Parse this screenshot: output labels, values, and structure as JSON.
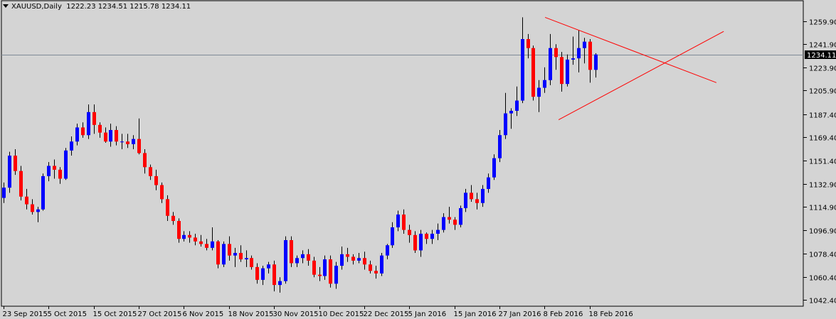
{
  "header": {
    "symbol_label": "XAUUSD,Daily",
    "ohlc_text": "1222.23 1234.51 1215.78 1234.11"
  },
  "price_marker": "1234.11",
  "colors": {
    "background": "#d4d4d4",
    "bull": "#0000ff",
    "bear": "#ff0000",
    "wick": "#000000",
    "trendline": "#ff0000",
    "price_line": "#7f8a96",
    "marker_bg": "#000000",
    "marker_text": "#ffffff"
  },
  "chart_data": {
    "type": "candlestick",
    "title": "XAUUSD,Daily",
    "ylim": [
      1042.4,
      1270.0
    ],
    "y_ticks": [
      1259.9,
      1241.9,
      1223.9,
      1205.9,
      1187.4,
      1169.4,
      1151.4,
      1132.9,
      1114.9,
      1096.9,
      1078.4,
      1060.4,
      1042.4
    ],
    "y_tick_labels": [
      "1259.90",
      "1241.90",
      "1223.90",
      "1205.90",
      "1187.40",
      "1169.40",
      "1151.40",
      "1132.90",
      "1114.90",
      "1096.90",
      "1078.40",
      "1060.40",
      "1042.40"
    ],
    "x_labels": [
      {
        "text": "23 Sep 2015",
        "index": 0
      },
      {
        "text": "5 Oct 2015",
        "index": 8
      },
      {
        "text": "15 Oct 2015",
        "index": 16
      },
      {
        "text": "27 Oct 2015",
        "index": 24
      },
      {
        "text": "6 Nov 2015",
        "index": 32
      },
      {
        "text": "18 Nov 2015",
        "index": 40
      },
      {
        "text": "30 Nov 2015",
        "index": 48
      },
      {
        "text": "10 Dec 2015",
        "index": 56
      },
      {
        "text": "22 Dec 2015",
        "index": 64
      },
      {
        "text": "5 Jan 2016",
        "index": 72
      },
      {
        "text": "15 Jan 2016",
        "index": 80
      },
      {
        "text": "27 Jan 2016",
        "index": 88
      },
      {
        "text": "8 Feb 2016",
        "index": 96
      },
      {
        "text": "18 Feb 2016",
        "index": 104
      }
    ],
    "candles": [
      [
        1122,
        1134,
        1118,
        1130
      ],
      [
        1130,
        1158,
        1126,
        1155
      ],
      [
        1155,
        1160,
        1140,
        1143
      ],
      [
        1143,
        1147,
        1120,
        1123
      ],
      [
        1123,
        1129,
        1113,
        1117
      ],
      [
        1117,
        1121,
        1109,
        1111
      ],
      [
        1111,
        1115,
        1103,
        1113
      ],
      [
        1113,
        1141,
        1112,
        1139
      ],
      [
        1139,
        1150,
        1135,
        1147
      ],
      [
        1147,
        1152,
        1137,
        1144
      ],
      [
        1144,
        1146,
        1133,
        1137
      ],
      [
        1137,
        1161,
        1136,
        1159
      ],
      [
        1159,
        1170,
        1155,
        1166
      ],
      [
        1166,
        1180,
        1163,
        1177
      ],
      [
        1177,
        1181,
        1169,
        1171
      ],
      [
        1171,
        1195,
        1168,
        1189
      ],
      [
        1189,
        1195,
        1172,
        1179
      ],
      [
        1179,
        1181,
        1169,
        1173
      ],
      [
        1173,
        1177,
        1165,
        1166
      ],
      [
        1166,
        1180,
        1162,
        1175
      ],
      [
        1175,
        1178,
        1163,
        1166
      ],
      [
        1166,
        1172,
        1160,
        1166
      ],
      [
        1166,
        1172,
        1161,
        1164
      ],
      [
        1164,
        1171,
        1160,
        1168
      ],
      [
        1168,
        1184,
        1156,
        1157
      ],
      [
        1157,
        1160,
        1141,
        1146
      ],
      [
        1146,
        1148,
        1136,
        1139
      ],
      [
        1139,
        1144,
        1128,
        1132
      ],
      [
        1132,
        1134,
        1118,
        1121
      ],
      [
        1121,
        1124,
        1104,
        1108
      ],
      [
        1108,
        1111,
        1101,
        1104
      ],
      [
        1104,
        1106,
        1087,
        1090
      ],
      [
        1090,
        1096,
        1088,
        1093
      ],
      [
        1093,
        1096,
        1087,
        1091
      ],
      [
        1091,
        1094,
        1085,
        1088
      ],
      [
        1088,
        1093,
        1084,
        1086
      ],
      [
        1086,
        1090,
        1081,
        1083
      ],
      [
        1083,
        1099,
        1081,
        1088
      ],
      [
        1088,
        1089,
        1067,
        1070
      ],
      [
        1070,
        1088,
        1068,
        1086
      ],
      [
        1086,
        1092,
        1073,
        1077
      ],
      [
        1077,
        1083,
        1068,
        1079
      ],
      [
        1079,
        1085,
        1072,
        1074
      ],
      [
        1074,
        1081,
        1068,
        1075
      ],
      [
        1075,
        1077,
        1066,
        1068
      ],
      [
        1068,
        1071,
        1055,
        1058
      ],
      [
        1058,
        1069,
        1054,
        1067
      ],
      [
        1067,
        1072,
        1063,
        1070
      ],
      [
        1070,
        1073,
        1049,
        1054
      ],
      [
        1054,
        1060,
        1048,
        1057
      ],
      [
        1057,
        1092,
        1055,
        1089
      ],
      [
        1089,
        1092,
        1068,
        1071
      ],
      [
        1071,
        1077,
        1068,
        1075
      ],
      [
        1075,
        1081,
        1071,
        1078
      ],
      [
        1078,
        1082,
        1069,
        1073
      ],
      [
        1073,
        1076,
        1060,
        1062
      ],
      [
        1062,
        1068,
        1057,
        1061
      ],
      [
        1061,
        1077,
        1058,
        1074
      ],
      [
        1074,
        1077,
        1052,
        1055
      ],
      [
        1055,
        1072,
        1051,
        1069
      ],
      [
        1069,
        1084,
        1066,
        1078
      ],
      [
        1078,
        1083,
        1072,
        1076
      ],
      [
        1076,
        1078,
        1070,
        1073
      ],
      [
        1073,
        1079,
        1071,
        1075
      ],
      [
        1075,
        1080,
        1066,
        1070
      ],
      [
        1070,
        1073,
        1063,
        1065
      ],
      [
        1065,
        1069,
        1059,
        1063
      ],
      [
        1063,
        1079,
        1061,
        1077
      ],
      [
        1077,
        1086,
        1074,
        1085
      ],
      [
        1085,
        1103,
        1083,
        1099
      ],
      [
        1099,
        1112,
        1096,
        1109
      ],
      [
        1109,
        1113,
        1094,
        1097
      ],
      [
        1097,
        1101,
        1087,
        1093
      ],
      [
        1093,
        1096,
        1079,
        1081
      ],
      [
        1081,
        1097,
        1076,
        1094
      ],
      [
        1094,
        1095,
        1086,
        1090
      ],
      [
        1090,
        1097,
        1086,
        1094
      ],
      [
        1094,
        1102,
        1089,
        1097
      ],
      [
        1097,
        1110,
        1095,
        1107
      ],
      [
        1107,
        1115,
        1102,
        1105
      ],
      [
        1105,
        1107,
        1097,
        1101
      ],
      [
        1101,
        1116,
        1099,
        1114
      ],
      [
        1114,
        1129,
        1111,
        1126
      ],
      [
        1126,
        1132,
        1119,
        1121
      ],
      [
        1121,
        1126,
        1113,
        1118
      ],
      [
        1118,
        1132,
        1115,
        1129
      ],
      [
        1129,
        1141,
        1126,
        1138
      ],
      [
        1138,
        1156,
        1136,
        1153
      ],
      [
        1153,
        1175,
        1150,
        1171
      ],
      [
        1171,
        1204,
        1168,
        1188
      ],
      [
        1188,
        1192,
        1176,
        1190
      ],
      [
        1190,
        1209,
        1186,
        1198
      ],
      [
        1198,
        1263,
        1196,
        1246
      ],
      [
        1246,
        1250,
        1231,
        1239
      ],
      [
        1239,
        1241,
        1198,
        1201
      ],
      [
        1201,
        1214,
        1189,
        1208
      ],
      [
        1208,
        1224,
        1204,
        1214
      ],
      [
        1214,
        1250,
        1210,
        1239
      ],
      [
        1239,
        1242,
        1222,
        1232
      ],
      [
        1232,
        1236,
        1205,
        1211
      ],
      [
        1211,
        1234,
        1209,
        1230
      ],
      [
        1230,
        1248,
        1226,
        1231
      ],
      [
        1231,
        1253,
        1220,
        1239
      ],
      [
        1239,
        1247,
        1227,
        1244
      ],
      [
        1244,
        1246,
        1212,
        1222
      ],
      [
        1222,
        1235,
        1216,
        1234
      ]
    ]
  }
}
